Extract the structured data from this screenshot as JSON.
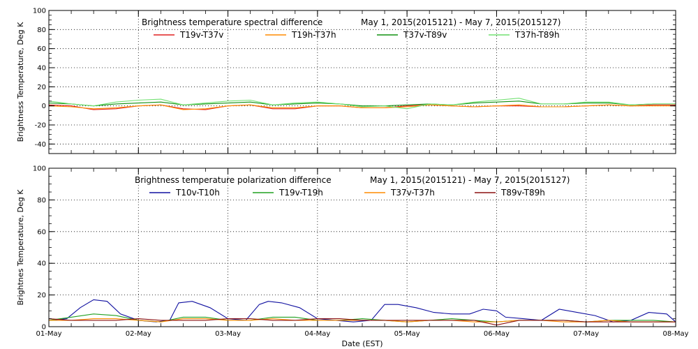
{
  "chart_data": [
    {
      "type": "line",
      "title": "Brightness temperature spectral difference",
      "date_range": "May  1, 2015(2015121) - May  7, 2015(2015127)",
      "ylabel": "Brightness Temperature, Deg K",
      "xlabel": "",
      "ylim": [
        -50,
        100
      ],
      "yticks": [
        "-40",
        "-20",
        "0",
        "20",
        "40",
        "60",
        "80",
        "100"
      ],
      "ytick_values": [
        -40,
        -20,
        0,
        20,
        40,
        60,
        80,
        100
      ],
      "xlim": [
        0,
        7
      ],
      "grid": "dotted",
      "legend_placement": "top",
      "series": [
        {
          "name": "T19v-T37v",
          "color": "#e02020",
          "x": [
            0,
            0.25,
            0.5,
            0.75,
            1,
            1.25,
            1.5,
            1.75,
            2,
            2.25,
            2.5,
            2.75,
            3,
            3.25,
            3.5,
            3.75,
            4,
            4.25,
            4.5,
            4.75,
            5,
            5.25,
            5.5,
            5.75,
            6,
            6.25,
            6.5,
            6.75,
            7
          ],
          "y": [
            1,
            0,
            -4,
            -3,
            0,
            1,
            -3,
            -4,
            0,
            1,
            -3,
            -3,
            0,
            0,
            -2,
            -2,
            0,
            1,
            0,
            -1,
            0,
            0,
            -1,
            -1,
            0,
            1,
            0,
            1,
            1
          ]
        },
        {
          "name": "T19h-T37h",
          "color": "#ff8c00",
          "x": [
            0,
            0.25,
            0.5,
            0.75,
            1,
            1.25,
            1.5,
            1.75,
            2,
            2.25,
            2.5,
            2.75,
            3,
            3.25,
            3.5,
            3.75,
            4,
            4.25,
            4.5,
            4.75,
            5,
            5.25,
            5.5,
            5.75,
            6,
            6.25,
            6.5,
            6.75,
            7
          ],
          "y": [
            0,
            -1,
            -3,
            -2,
            0,
            1,
            -4,
            -3,
            0,
            1,
            -2,
            -2,
            0,
            0,
            -2,
            -2,
            -1,
            1,
            0,
            -1,
            0,
            1,
            -1,
            -1,
            0,
            1,
            0,
            0,
            0
          ]
        },
        {
          "name": "T37v-T89v",
          "color": "#109010",
          "x": [
            0,
            0.25,
            0.5,
            0.75,
            1,
            1.25,
            1.5,
            1.75,
            2,
            2.25,
            2.5,
            2.75,
            3,
            3.25,
            3.5,
            3.75,
            4,
            4.25,
            4.5,
            4.75,
            5,
            5.25,
            5.5,
            5.75,
            6,
            6.25,
            6.5,
            6.75,
            7
          ],
          "y": [
            3,
            2,
            0,
            2,
            3,
            4,
            1,
            2,
            3,
            4,
            1,
            2,
            3,
            2,
            0,
            0,
            1,
            2,
            1,
            3,
            4,
            5,
            2,
            2,
            3,
            3,
            1,
            2,
            2
          ]
        },
        {
          "name": "T37h-T89h",
          "color": "#70e070",
          "x": [
            0,
            0.25,
            0.5,
            0.75,
            1,
            1.25,
            1.5,
            1.75,
            2,
            2.25,
            2.5,
            2.75,
            3,
            3.25,
            3.5,
            3.75,
            4,
            4.25,
            4.5,
            4.75,
            5,
            5.25,
            5.5,
            5.75,
            6,
            6.25,
            6.5,
            6.75,
            7
          ],
          "y": [
            5,
            2,
            0,
            4,
            6,
            7,
            1,
            3,
            5,
            6,
            1,
            3,
            4,
            2,
            -1,
            0,
            -3,
            2,
            1,
            4,
            6,
            8,
            2,
            2,
            4,
            4,
            1,
            2,
            2
          ]
        }
      ]
    },
    {
      "type": "line",
      "title": "Brightness temperature polarization difference",
      "date_range": "May  1, 2015(2015121) - May  7, 2015(2015127)",
      "ylabel": "Brightnes Temperature, Deg K",
      "xlabel": "Date (EST)",
      "ylim": [
        0,
        100
      ],
      "yticks": [
        "0",
        "20",
        "40",
        "60",
        "80",
        "100"
      ],
      "ytick_values": [
        0,
        20,
        40,
        60,
        80,
        100
      ],
      "xlim": [
        0,
        7
      ],
      "xticks": [
        "01-May",
        "02-May",
        "03-May",
        "04-May",
        "05-May",
        "06-May",
        "07-May",
        "08-May"
      ],
      "grid": "dotted",
      "legend_placement": "top",
      "series": [
        {
          "name": "T10v-T10h",
          "color": "#1010a0",
          "x": [
            0,
            0.2,
            0.35,
            0.5,
            0.65,
            0.8,
            1,
            1.2,
            1.35,
            1.45,
            1.6,
            1.8,
            2,
            2.2,
            2.35,
            2.45,
            2.6,
            2.8,
            3,
            3.2,
            3.4,
            3.6,
            3.75,
            3.9,
            4.1,
            4.3,
            4.5,
            4.7,
            4.85,
            5,
            5.1,
            5.3,
            5.5,
            5.7,
            5.9,
            6.1,
            6.3,
            6.5,
            6.7,
            6.9,
            7
          ],
          "y": [
            4,
            5,
            12,
            17,
            16,
            8,
            4,
            3,
            4,
            15,
            16,
            12,
            5,
            4,
            14,
            16,
            15,
            12,
            5,
            4,
            3,
            4,
            14,
            14,
            12,
            9,
            8,
            8,
            11,
            10,
            6,
            5,
            4,
            11,
            9,
            7,
            3,
            4,
            9,
            8,
            3
          ]
        },
        {
          "name": "T19v-T19h",
          "color": "#20a020",
          "x": [
            0,
            0.25,
            0.5,
            0.75,
            1,
            1.25,
            1.5,
            1.75,
            2,
            2.25,
            2.5,
            2.75,
            3,
            3.25,
            3.5,
            3.75,
            4,
            4.25,
            4.5,
            4.75,
            5,
            5.25,
            5.5,
            5.75,
            6,
            6.25,
            6.5,
            6.75,
            7
          ],
          "y": [
            4,
            6,
            8,
            7,
            4,
            3,
            6,
            6,
            4,
            4,
            6,
            6,
            4,
            4,
            5,
            4,
            3,
            4,
            5,
            4,
            3,
            4,
            4,
            4,
            3,
            4,
            4,
            4,
            3
          ]
        },
        {
          "name": "T37v-T37h",
          "color": "#ff8c00",
          "x": [
            0,
            0.25,
            0.5,
            0.75,
            1,
            1.25,
            1.5,
            1.75,
            2,
            2.25,
            2.5,
            2.75,
            3,
            3.25,
            3.5,
            3.75,
            4,
            4.25,
            4.5,
            4.75,
            5,
            5.25,
            5.5,
            5.75,
            6,
            6.25,
            6.5,
            6.75,
            7
          ],
          "y": [
            4,
            4,
            5,
            5,
            4,
            3,
            5,
            5,
            4,
            4,
            5,
            4,
            4,
            4,
            4,
            4,
            3,
            4,
            4,
            3,
            3,
            4,
            4,
            3,
            3,
            4,
            3,
            3,
            3
          ]
        },
        {
          "name": "T89v-T89h",
          "color": "#8b1010",
          "x": [
            0,
            0.25,
            0.5,
            0.75,
            1,
            1.25,
            1.5,
            1.75,
            2,
            2.25,
            2.5,
            2.75,
            3,
            3.25,
            3.5,
            3.75,
            4,
            4.25,
            4.5,
            4.75,
            5,
            5.25,
            5.5,
            5.75,
            6,
            6.25,
            6.5,
            6.75,
            7
          ],
          "y": [
            5,
            4,
            4,
            4,
            5,
            4,
            4,
            4,
            5,
            5,
            4,
            4,
            5,
            5,
            4,
            4,
            4,
            4,
            4,
            4,
            1,
            4,
            4,
            4,
            3,
            3,
            3,
            3,
            3
          ]
        }
      ]
    }
  ]
}
